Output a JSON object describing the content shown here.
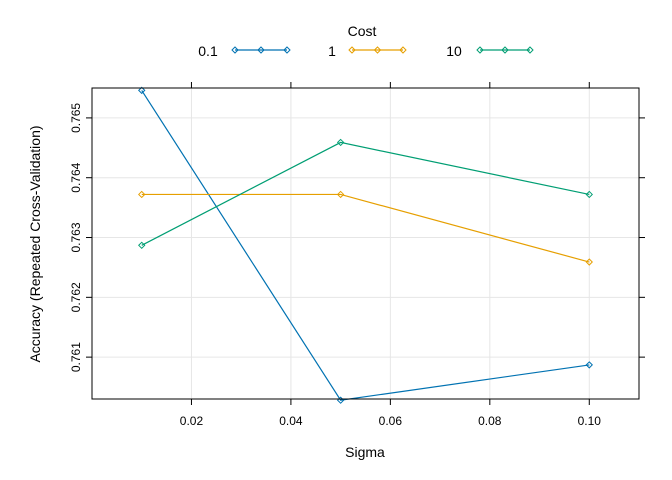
{
  "chart_data": {
    "type": "line",
    "title": "",
    "xlabel": "Sigma",
    "ylabel": "Accuracy (Repeated Cross-Validation)",
    "legend_title": "Cost",
    "legend_position": "top",
    "grid": true,
    "xlim": [
      0.0,
      0.11
    ],
    "ylim": [
      0.7603,
      0.7655
    ],
    "x": [
      0.01,
      0.05,
      0.1
    ],
    "x_ticks": [
      0.02,
      0.04,
      0.06,
      0.08,
      0.1
    ],
    "x_tick_labels": [
      "0.02",
      "0.04",
      "0.06",
      "0.08",
      "0.10"
    ],
    "y_ticks": [
      0.761,
      0.762,
      0.763,
      0.764,
      0.765
    ],
    "y_tick_labels": [
      "0.761",
      "0.762",
      "0.763",
      "0.764",
      "0.765"
    ],
    "series": [
      {
        "name": "0.1",
        "color": "#0072b2",
        "values": [
          0.76546,
          0.76028,
          0.76087
        ]
      },
      {
        "name": "1",
        "color": "#e69f00",
        "values": [
          0.76372,
          0.76372,
          0.76259
        ]
      },
      {
        "name": "10",
        "color": "#009e73",
        "values": [
          0.76287,
          0.76459,
          0.76372
        ]
      }
    ]
  }
}
